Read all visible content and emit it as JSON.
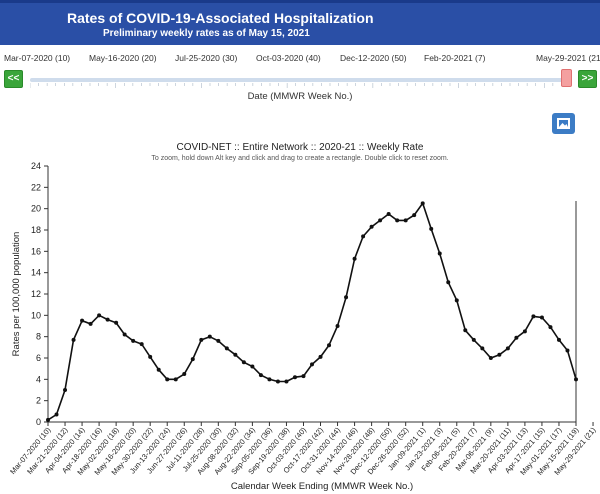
{
  "header": {
    "title": "Rates of COVID-19-Associated Hospitalization",
    "subtitle": "Preliminary weekly rates as of May 15, 2021"
  },
  "timeline": {
    "labels": [
      "Mar-07-2020 (10)",
      "May-16-2020 (20)",
      "Jul-25-2020 (30)",
      "Oct-03-2020 (40)",
      "Dec-12-2020 (50)",
      "Feb-20-2021 (7)",
      "May-29-2021 (21)"
    ],
    "prev_label": "<<",
    "next_label": ">>",
    "caption": "Date (MMWR Week No.)"
  },
  "icons": {
    "image_button": "image-icon"
  },
  "chart_data": {
    "type": "line",
    "title": "COVID-NET :: Entire Network :: 2020-21 :: Weekly Rate",
    "subtitle": "To zoom, hold down Alt key and click and drag to create a rectangle. Double click to reset zoom.",
    "xlabel": "Calendar Week Ending (MMWR Week No.)",
    "ylabel": "Rates per 100,000 population",
    "ylim": [
      0,
      24
    ],
    "yticks": [
      0,
      2,
      4,
      6,
      8,
      10,
      12,
      14,
      16,
      18,
      20,
      22,
      24
    ],
    "grid": false,
    "x_tick_labels": [
      "Mar-07-2020 (10)",
      "Mar-21-2020 (12)",
      "Apr-04-2020 (14)",
      "Apr-18-2020 (16)",
      "May-02-2020 (18)",
      "May-16-2020 (20)",
      "May-30-2020 (22)",
      "Jun-13-2020 (24)",
      "Jun-27-2020 (26)",
      "Jul-11-2020 (28)",
      "Jul-25-2020 (30)",
      "Aug-08-2020 (32)",
      "Aug-22-2020 (34)",
      "Sep-05-2020 (36)",
      "Sep-19-2020 (38)",
      "Oct-03-2020 (40)",
      "Oct-17-2020 (42)",
      "Oct-31-2020 (44)",
      "Nov-14-2020 (46)",
      "Nov-28-2020 (48)",
      "Dec-12-2020 (50)",
      "Dec-26-2020 (52)",
      "Jan-09-2021 (1)",
      "Jan-23-2021 (3)",
      "Feb-06-2021 (5)",
      "Feb-20-2021 (7)",
      "Mar-06-2021 (9)",
      "Mar-20-2021 (11)",
      "Apr-03-2021 (13)",
      "Apr-17-2021 (15)",
      "May-01-2021 (17)",
      "May-15-2021 (19)",
      "May-29-2021 (21)"
    ],
    "series": [
      {
        "color": "#111111",
        "values": [
          0.2,
          0.7,
          3.0,
          7.7,
          9.5,
          9.2,
          10.0,
          9.6,
          9.3,
          8.2,
          7.6,
          7.3,
          6.1,
          4.9,
          4.0,
          4.0,
          4.5,
          5.9,
          7.7,
          8.0,
          7.6,
          6.9,
          6.3,
          5.6,
          5.2,
          4.4,
          4.0,
          3.8,
          3.8,
          4.2,
          4.3,
          5.4,
          6.1,
          7.2,
          9.0,
          11.7,
          15.3,
          17.4,
          18.3,
          18.9,
          19.5,
          18.9,
          18.9,
          19.4,
          20.5,
          18.1,
          15.8,
          13.1,
          11.4,
          8.6,
          7.7,
          6.9,
          6.0,
          6.3,
          6.9,
          7.9,
          8.5,
          9.9,
          9.8,
          8.9,
          7.7,
          6.7,
          4.0
        ]
      }
    ]
  }
}
